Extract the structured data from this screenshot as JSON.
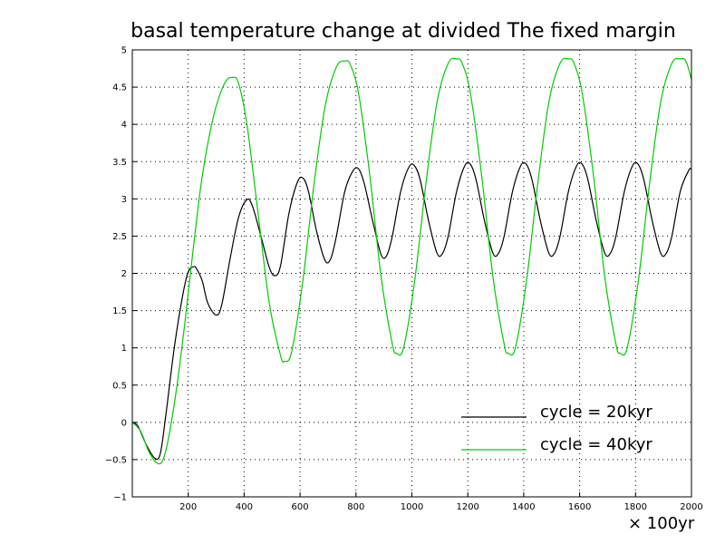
{
  "chart_data": {
    "type": "line",
    "title": "basal temperature change at divided The fixed margin",
    "x_unit_label": "× 100yr",
    "xlim": [
      0,
      2000
    ],
    "ylim": [
      -1,
      5
    ],
    "x_ticks": [
      200,
      400,
      600,
      800,
      1000,
      1200,
      1400,
      1600,
      1800,
      2000
    ],
    "x_tick_labels": [
      "200",
      "400",
      "600",
      "800",
      "1000",
      "1200",
      "1400",
      "1600",
      "1800",
      "2000"
    ],
    "y_ticks": [
      -1,
      -0.5,
      0,
      0.5,
      1,
      1.5,
      2,
      2.5,
      3,
      3.5,
      4,
      4.5,
      5
    ],
    "y_tick_labels": [
      "−1",
      "−0.5",
      "0",
      "0.5",
      "1",
      "1.5",
      "2",
      "2.5",
      "3",
      "3.5",
      "4",
      "4.5",
      "5"
    ],
    "grid": true,
    "legend_position": "bottom-right",
    "series": [
      {
        "name": "cycle = 20kyr",
        "color": "#000000",
        "x": [
          0,
          20,
          50,
          80,
          100,
          120,
          150,
          180,
          200,
          220,
          230,
          250,
          270,
          300,
          320,
          350,
          380,
          410,
          430,
          460,
          490,
          510,
          530,
          560,
          590,
          610,
          630,
          660,
          690,
          710,
          730,
          760,
          790,
          810,
          830,
          860,
          890,
          910,
          930,
          960,
          990,
          1010,
          1030,
          1060,
          1090,
          1110,
          1130,
          1160,
          1190,
          1210,
          1230,
          1260,
          1290,
          1310,
          1330,
          1360,
          1390,
          1410,
          1430,
          1460,
          1490,
          1510,
          1530,
          1560,
          1590,
          1610,
          1630,
          1660,
          1690,
          1710,
          1730,
          1760,
          1790,
          1810,
          1830,
          1860,
          1890,
          1910,
          1930,
          1960,
          1990,
          2000
        ],
        "y": [
          0,
          -0.05,
          -0.3,
          -0.48,
          -0.42,
          0.1,
          1.0,
          1.7,
          2.02,
          2.09,
          2.06,
          1.9,
          1.6,
          1.44,
          1.58,
          2.2,
          2.75,
          2.99,
          2.9,
          2.5,
          2.08,
          1.97,
          2.1,
          2.8,
          3.22,
          3.28,
          3.1,
          2.55,
          2.17,
          2.2,
          2.5,
          3.1,
          3.38,
          3.4,
          3.2,
          2.7,
          2.25,
          2.24,
          2.5,
          3.1,
          3.43,
          3.44,
          3.25,
          2.7,
          2.27,
          2.27,
          2.5,
          3.1,
          3.45,
          3.46,
          3.25,
          2.7,
          2.27,
          2.27,
          2.5,
          3.1,
          3.45,
          3.46,
          3.25,
          2.7,
          2.27,
          2.27,
          2.5,
          3.1,
          3.45,
          3.46,
          3.25,
          2.7,
          2.27,
          2.27,
          2.5,
          3.1,
          3.45,
          3.46,
          3.25,
          2.7,
          2.27,
          2.27,
          2.5,
          3.1,
          3.38,
          3.4
        ]
      },
      {
        "name": "cycle = 40kyr",
        "color": "#00cc00",
        "x": [
          0,
          30,
          60,
          90,
          110,
          130,
          160,
          190,
          220,
          250,
          290,
          330,
          360,
          380,
          410,
          450,
          490,
          530,
          545,
          570,
          610,
          650,
          690,
          730,
          760,
          780,
          810,
          850,
          890,
          930,
          945,
          970,
          1010,
          1050,
          1090,
          1130,
          1160,
          1180,
          1210,
          1250,
          1290,
          1330,
          1345,
          1370,
          1410,
          1450,
          1490,
          1530,
          1560,
          1580,
          1610,
          1650,
          1690,
          1730,
          1745,
          1770,
          1810,
          1850,
          1890,
          1930,
          1960,
          1980,
          2000
        ],
        "y": [
          0,
          -0.12,
          -0.4,
          -0.55,
          -0.5,
          -0.2,
          0.5,
          1.4,
          2.4,
          3.3,
          4.1,
          4.55,
          4.63,
          4.55,
          4.0,
          2.8,
          1.6,
          0.9,
          0.82,
          0.95,
          1.9,
          3.2,
          4.25,
          4.77,
          4.85,
          4.8,
          4.4,
          3.3,
          1.95,
          1.05,
          0.93,
          1.0,
          1.9,
          3.2,
          4.3,
          4.82,
          4.88,
          4.82,
          4.4,
          3.3,
          1.95,
          1.05,
          0.93,
          1.0,
          1.9,
          3.2,
          4.3,
          4.82,
          4.88,
          4.82,
          4.4,
          3.3,
          1.95,
          1.05,
          0.93,
          1.0,
          1.9,
          3.2,
          4.3,
          4.82,
          4.88,
          4.85,
          4.6
        ]
      }
    ]
  }
}
